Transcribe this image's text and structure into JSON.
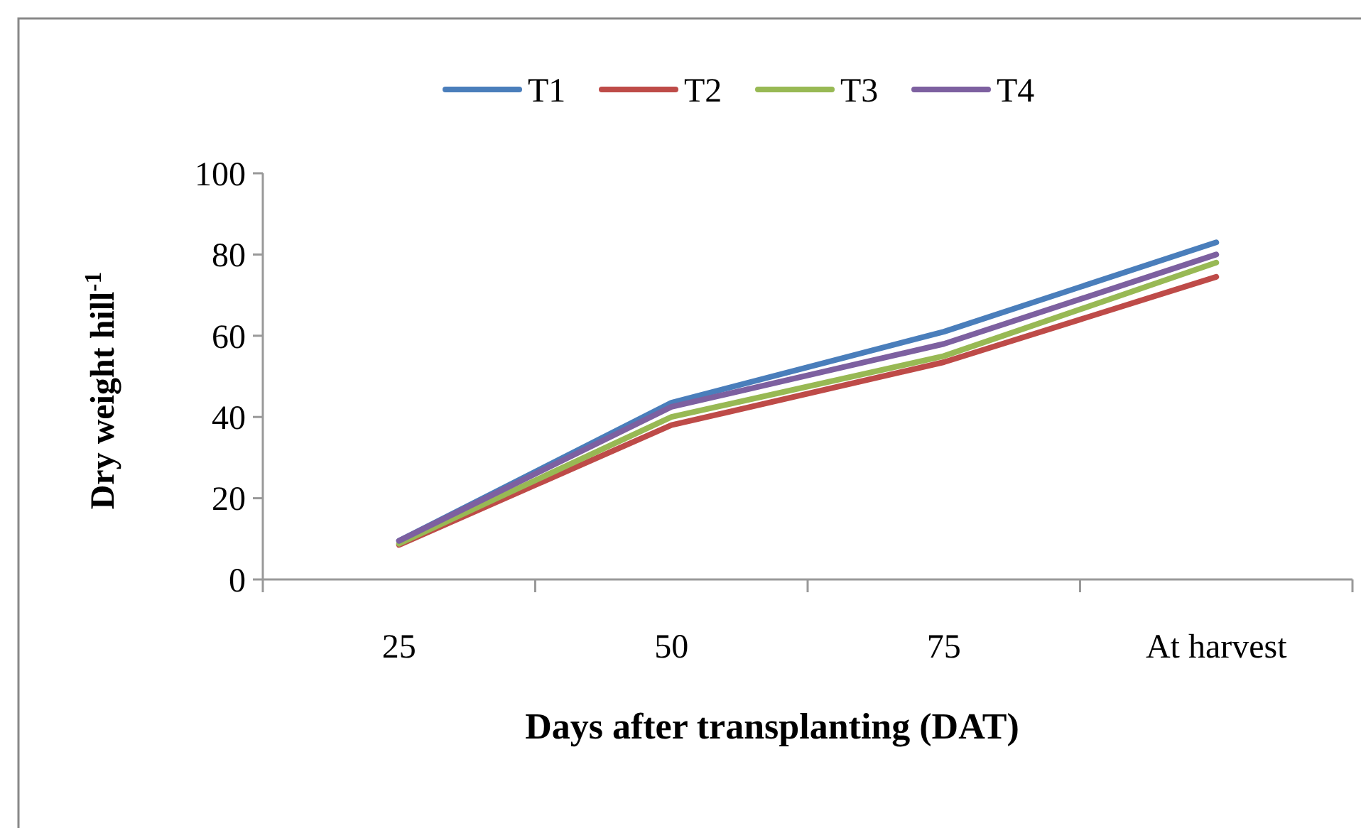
{
  "chart_data": {
    "type": "line",
    "xlabel": "Days after transplanting (DAT)",
    "ylabel": "Dry weight hill$^{-1}$",
    "categories": [
      "25",
      "50",
      "75",
      "At harvest"
    ],
    "series": [
      {
        "name": "T1",
        "color": "#4a7ebb",
        "values": [
          9.5,
          43.5,
          61,
          83
        ]
      },
      {
        "name": "T2",
        "color": "#be4b48",
        "values": [
          8.5,
          38,
          53.5,
          74.5
        ]
      },
      {
        "name": "T3",
        "color": "#98b954",
        "values": [
          8.8,
          40,
          55,
          78
        ]
      },
      {
        "name": "T4",
        "color": "#7d60a0",
        "values": [
          9.5,
          42.5,
          58,
          80
        ]
      }
    ],
    "ylim": [
      0,
      100
    ],
    "yticks": [
      0,
      20,
      40,
      60,
      80,
      100
    ],
    "legend": "top",
    "grid": false,
    "marker": "none",
    "line_style": "solid"
  }
}
